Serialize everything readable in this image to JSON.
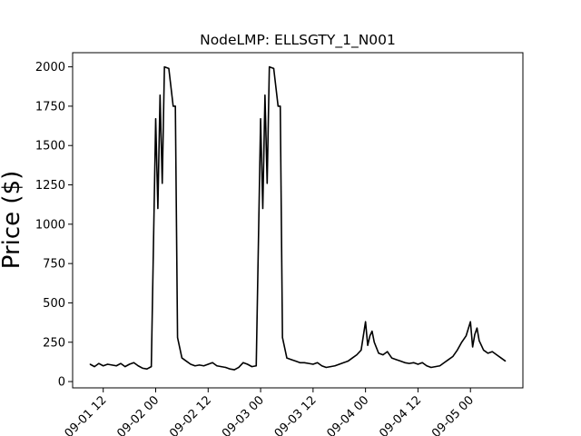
{
  "chart_data": {
    "type": "line",
    "title": "NodeLMP: ELLSGTY_1_N001",
    "xlabel": "",
    "ylabel": "Price ($)",
    "ylim": [
      -40,
      2090
    ],
    "xlim": [
      "2019-09-01 05:00",
      "2019-09-05 12:00"
    ],
    "x_ticks": [
      "09-01 12",
      "09-02 00",
      "09-02 12",
      "09-03 00",
      "09-03 12",
      "09-04 00",
      "09-04 12",
      "09-05 00"
    ],
    "y_ticks": [
      0,
      250,
      500,
      750,
      1000,
      1250,
      1500,
      1750,
      2000
    ],
    "grid": false,
    "line_color": "#000000",
    "series": [
      {
        "x": [
          "2019-09-01 09:00",
          "2019-09-01 10:00",
          "2019-09-01 11:00",
          "2019-09-01 12:00",
          "2019-09-01 13:00",
          "2019-09-01 14:00",
          "2019-09-01 15:00",
          "2019-09-01 16:00",
          "2019-09-01 17:00",
          "2019-09-01 18:00",
          "2019-09-01 19:00",
          "2019-09-01 20:00",
          "2019-09-01 21:00",
          "2019-09-01 22:00",
          "2019-09-01 23:00",
          "2019-09-02 00:00",
          "2019-09-02 00:30",
          "2019-09-02 01:00",
          "2019-09-02 01:30",
          "2019-09-02 02:00",
          "2019-09-02 03:00",
          "2019-09-02 04:00",
          "2019-09-02 04:30",
          "2019-09-02 05:00",
          "2019-09-02 06:00",
          "2019-09-02 07:00",
          "2019-09-02 08:00",
          "2019-09-02 09:00",
          "2019-09-02 10:00",
          "2019-09-02 11:00",
          "2019-09-02 12:00",
          "2019-09-02 13:00",
          "2019-09-02 14:00",
          "2019-09-02 15:00",
          "2019-09-02 16:00",
          "2019-09-02 17:00",
          "2019-09-02 18:00",
          "2019-09-02 19:00",
          "2019-09-02 20:00",
          "2019-09-02 21:00",
          "2019-09-02 22:00",
          "2019-09-02 23:00",
          "2019-09-03 00:00",
          "2019-09-03 00:30",
          "2019-09-03 01:00",
          "2019-09-03 01:30",
          "2019-09-03 02:00",
          "2019-09-03 03:00",
          "2019-09-03 04:00",
          "2019-09-03 04:30",
          "2019-09-03 05:00",
          "2019-09-03 06:00",
          "2019-09-03 07:00",
          "2019-09-03 08:00",
          "2019-09-03 09:00",
          "2019-09-03 10:00",
          "2019-09-03 11:00",
          "2019-09-03 12:00",
          "2019-09-03 13:00",
          "2019-09-03 14:00",
          "2019-09-03 15:00",
          "2019-09-03 16:00",
          "2019-09-03 17:00",
          "2019-09-03 18:00",
          "2019-09-03 19:00",
          "2019-09-03 20:00",
          "2019-09-03 21:00",
          "2019-09-03 22:00",
          "2019-09-03 23:00",
          "2019-09-04 00:00",
          "2019-09-04 00:30",
          "2019-09-04 01:00",
          "2019-09-04 01:30",
          "2019-09-04 02:00",
          "2019-09-04 03:00",
          "2019-09-04 04:00",
          "2019-09-04 05:00",
          "2019-09-04 06:00",
          "2019-09-04 07:00",
          "2019-09-04 08:00",
          "2019-09-04 09:00",
          "2019-09-04 10:00",
          "2019-09-04 11:00",
          "2019-09-04 12:00",
          "2019-09-04 13:00",
          "2019-09-04 14:00",
          "2019-09-04 15:00",
          "2019-09-04 16:00",
          "2019-09-04 17:00",
          "2019-09-04 18:00",
          "2019-09-04 19:00",
          "2019-09-04 20:00",
          "2019-09-04 21:00",
          "2019-09-04 22:00",
          "2019-09-04 23:00",
          "2019-09-05 00:00",
          "2019-09-05 00:30",
          "2019-09-05 01:00",
          "2019-09-05 01:30",
          "2019-09-05 02:00",
          "2019-09-05 03:00",
          "2019-09-05 04:00",
          "2019-09-05 05:00",
          "2019-09-05 06:00",
          "2019-09-05 07:00",
          "2019-09-05 08:00"
        ],
        "values": [
          110,
          95,
          115,
          100,
          110,
          105,
          100,
          115,
          95,
          110,
          120,
          100,
          85,
          80,
          95,
          1670,
          1100,
          1820,
          1260,
          2000,
          1990,
          1750,
          1750,
          280,
          150,
          130,
          110,
          100,
          105,
          100,
          110,
          120,
          100,
          95,
          90,
          80,
          75,
          90,
          120,
          110,
          95,
          100,
          1670,
          1100,
          1820,
          1260,
          2000,
          1990,
          1750,
          1750,
          280,
          150,
          140,
          130,
          120,
          120,
          115,
          110,
          120,
          100,
          90,
          95,
          100,
          110,
          120,
          130,
          150,
          170,
          200,
          380,
          230,
          290,
          320,
          250,
          180,
          170,
          190,
          150,
          140,
          130,
          120,
          115,
          120,
          110,
          120,
          100,
          90,
          95,
          100,
          120,
          140,
          160,
          200,
          250,
          290,
          380,
          220,
          300,
          340,
          260,
          200,
          180,
          190,
          170,
          150,
          130
        ]
      }
    ]
  }
}
